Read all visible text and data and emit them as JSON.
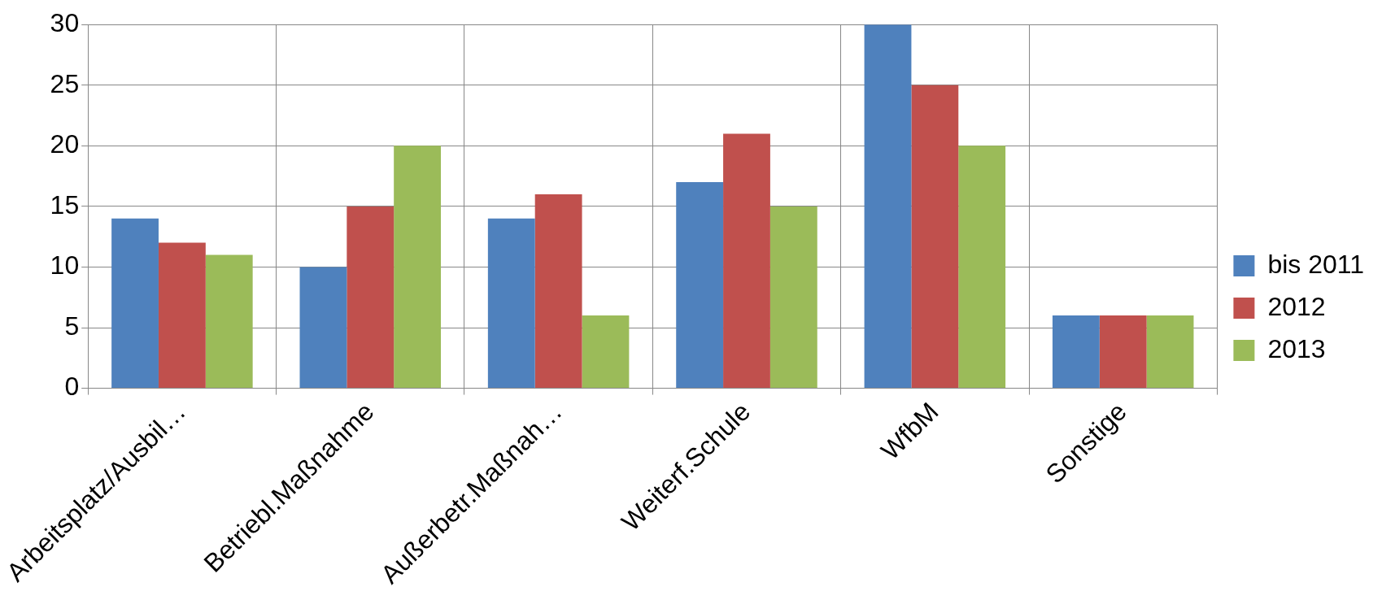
{
  "chart_data": {
    "type": "bar",
    "categories": [
      "Arbeitsplatz/Ausbil…",
      "Betriebl.Maßnahme",
      "Außerbetr.Maßnah…",
      "Weiterf.Schule",
      "WfbM",
      "Sonstige"
    ],
    "series": [
      {
        "name": "bis 2011",
        "color": "#4f81bd",
        "values": [
          14,
          10,
          14,
          17,
          30,
          6
        ]
      },
      {
        "name": "2012",
        "color": "#c0504d",
        "values": [
          12,
          15,
          16,
          21,
          25,
          6
        ]
      },
      {
        "name": "2013",
        "color": "#9bbb59",
        "values": [
          11,
          20,
          6,
          15,
          20,
          6
        ]
      }
    ],
    "ylim": [
      0,
      30
    ],
    "yticks": [
      0,
      5,
      10,
      15,
      20,
      25,
      30
    ],
    "grid": true,
    "legend": "right"
  }
}
